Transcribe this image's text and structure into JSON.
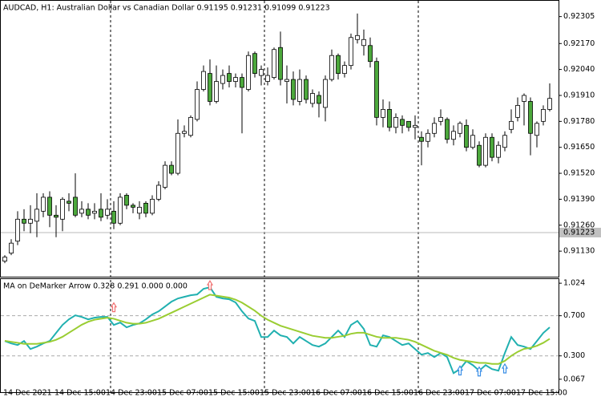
{
  "chart_data": [
    {
      "type": "candlestick",
      "title": "AUDCAD, H1:  Australian Dollar vs Canadian Dollar  0.91195 0.91231 0.91099 0.91223",
      "categories": [
        "14 Dec 2021",
        null,
        null,
        null,
        null,
        null,
        null,
        null,
        "14 Dec 15:00",
        null,
        null,
        null,
        null,
        null,
        null,
        null,
        "14 Dec 23:00",
        null,
        null,
        null,
        null,
        null,
        null,
        null,
        "15 Dec 07:00",
        null,
        null,
        null,
        null,
        null,
        null,
        null,
        "15 Dec 15:00",
        null,
        null,
        null,
        null,
        null,
        null,
        null,
        "15 Dec 23:00",
        null,
        null,
        null,
        null,
        null,
        null,
        null,
        "16 Dec 07:00",
        null,
        null,
        null,
        null,
        null,
        null,
        null,
        "16 Dec 15:00",
        null,
        null,
        null,
        null,
        null,
        null,
        null,
        "16 Dec 23:00",
        null,
        null,
        null,
        null,
        null,
        null,
        null,
        "17 Dec 07:00",
        null,
        null,
        null,
        null,
        null,
        null,
        null,
        "17 Dec 15:00",
        null,
        null,
        null,
        null,
        null
      ],
      "open": [
        0.9108,
        0.9112,
        0.9118,
        0.9129,
        0.9127,
        0.9128,
        0.9133,
        0.914,
        0.9131,
        0.9129,
        0.9138,
        0.914,
        0.9132,
        0.9134,
        0.9132,
        0.9134,
        0.9131,
        0.9133,
        0.9127,
        0.9141,
        0.9136,
        0.9132,
        0.9137,
        0.9132,
        0.9139,
        0.9145,
        0.9156,
        0.9152,
        0.9172,
        0.9171,
        0.9179,
        0.9194,
        0.9202,
        0.9188,
        0.9197,
        0.9202,
        0.9198,
        0.92,
        0.9194,
        0.9212,
        0.9201,
        0.9198,
        0.92,
        0.9215,
        0.9198,
        0.9199,
        0.9188,
        0.9199,
        0.9187,
        0.9191,
        0.9185,
        0.9199,
        0.9211,
        0.9202,
        0.9206,
        0.9219,
        0.9216,
        0.9216,
        0.9208,
        0.918,
        0.9184,
        0.9175,
        0.9179,
        0.9178,
        0.9175,
        0.917,
        0.9168,
        0.9172,
        0.9178,
        0.9179,
        0.9169,
        0.9172,
        0.9176,
        0.9165,
        0.9166,
        0.9156,
        0.917,
        0.916,
        0.9165,
        0.9174,
        0.918,
        0.9188,
        0.9188,
        0.9171,
        0.9178,
        0.9184
      ],
      "high": [
        0.9111,
        0.9119,
        0.9133,
        0.9134,
        0.9136,
        0.9142,
        0.9142,
        0.9143,
        0.9136,
        0.914,
        0.9142,
        0.9152,
        0.9138,
        0.9137,
        0.9137,
        0.9142,
        0.9139,
        0.9138,
        0.9142,
        0.9142,
        0.9137,
        0.9138,
        0.9138,
        0.9141,
        0.9148,
        0.9158,
        0.9158,
        0.9179,
        0.9176,
        0.9181,
        0.9198,
        0.9206,
        0.9209,
        0.9206,
        0.9204,
        0.9206,
        0.9202,
        0.9202,
        0.9213,
        0.9213,
        0.9206,
        0.9205,
        0.9215,
        0.9223,
        0.9206,
        0.9203,
        0.9204,
        0.9201,
        0.9194,
        0.9193,
        0.9201,
        0.9214,
        0.9212,
        0.9208,
        0.9222,
        0.9232,
        0.9224,
        0.922,
        0.921,
        0.9189,
        0.9188,
        0.9182,
        0.9181,
        0.9178,
        0.9181,
        0.9173,
        0.9174,
        0.918,
        0.9184,
        0.918,
        0.9176,
        0.9178,
        0.9179,
        0.9174,
        0.9168,
        0.9172,
        0.9172,
        0.9168,
        0.9173,
        0.9184,
        0.919,
        0.9192,
        0.919,
        0.9178,
        0.9186,
        0.9197
      ],
      "low": [
        0.9107,
        0.9111,
        0.9116,
        0.9123,
        0.9122,
        0.912,
        0.913,
        0.9125,
        0.912,
        0.9123,
        0.9133,
        0.913,
        0.913,
        0.9129,
        0.9129,
        0.9128,
        0.9129,
        0.9124,
        0.9126,
        0.9134,
        0.9132,
        0.9129,
        0.913,
        0.9131,
        0.9138,
        0.9144,
        0.9151,
        0.9151,
        0.917,
        0.917,
        0.9178,
        0.9193,
        0.9186,
        0.9187,
        0.9194,
        0.9195,
        0.9195,
        0.9172,
        0.9193,
        0.92,
        0.9196,
        0.9196,
        0.9199,
        0.9196,
        0.9187,
        0.9186,
        0.9186,
        0.9187,
        0.9185,
        0.918,
        0.9178,
        0.9198,
        0.9199,
        0.92,
        0.9204,
        0.9217,
        0.9211,
        0.9205,
        0.9176,
        0.9175,
        0.9173,
        0.9172,
        0.9172,
        0.9173,
        0.9169,
        0.9156,
        0.9165,
        0.917,
        0.9176,
        0.9167,
        0.9166,
        0.917,
        0.9163,
        0.9164,
        0.9155,
        0.9155,
        0.9158,
        0.9157,
        0.9163,
        0.9172,
        0.9178,
        0.9176,
        0.9161,
        0.9165,
        0.9176,
        0.9183
      ],
      "close": [
        0.911,
        0.9117,
        0.9129,
        0.9127,
        0.9129,
        0.9134,
        0.914,
        0.9131,
        0.913,
        0.9139,
        0.9137,
        0.9131,
        0.9134,
        0.9131,
        0.9133,
        0.913,
        0.9134,
        0.9127,
        0.914,
        0.9136,
        0.9135,
        0.9135,
        0.9132,
        0.9139,
        0.9146,
        0.9156,
        0.9152,
        0.9172,
        0.9173,
        0.918,
        0.9194,
        0.9203,
        0.9188,
        0.9198,
        0.9201,
        0.9198,
        0.92,
        0.9195,
        0.9211,
        0.9202,
        0.9204,
        0.9201,
        0.9214,
        0.9199,
        0.9199,
        0.9189,
        0.9199,
        0.9189,
        0.9192,
        0.9187,
        0.9199,
        0.9211,
        0.9202,
        0.9206,
        0.922,
        0.9221,
        0.9219,
        0.9208,
        0.918,
        0.9184,
        0.9175,
        0.918,
        0.9176,
        0.9175,
        0.9176,
        0.9168,
        0.9172,
        0.9177,
        0.918,
        0.9169,
        0.9173,
        0.9177,
        0.9165,
        0.9171,
        0.9156,
        0.917,
        0.916,
        0.9166,
        0.9171,
        0.9178,
        0.9186,
        0.9191,
        0.9172,
        0.9177,
        0.9184,
        0.91895
      ],
      "up_color": "#ffffff",
      "down_color": "#4ca83c",
      "price_line": 0.91223,
      "ylim": [
        0.90998,
        0.92388
      ],
      "yticks": [
        0.92305,
        {
          "value": 0.9217,
          "label": "0.92170"
        },
        {
          "value": 0.9204,
          "label": "0.92040"
        },
        {
          "value": 0.9191,
          "label": "0.91910"
        },
        {
          "value": 0.9178,
          "label": "0.91780"
        },
        {
          "value": 0.9165,
          "label": "0.91650"
        },
        {
          "value": 0.9152,
          "label": "0.91520"
        },
        {
          "value": 0.9139,
          "label": "0.91390"
        },
        {
          "value": 0.9126,
          "label": "0.91260"
        },
        {
          "value": 0.9113,
          "label": "0.91130"
        }
      ]
    },
    {
      "type": "line",
      "title": "MA on DeMarker Arrow 0.328 0.291 0.000 0.000",
      "series": [
        {
          "color": "#20b0b0",
          "values": [
            0.448,
            0.424,
            0.408,
            0.448,
            0.368,
            0.392,
            0.424,
            0.448,
            0.528,
            0.608,
            0.664,
            0.704,
            0.688,
            0.664,
            0.68,
            0.688,
            0.688,
            0.608,
            0.632,
            0.584,
            0.608,
            0.624,
            0.664,
            0.712,
            0.744,
            0.792,
            0.84,
            0.872,
            0.888,
            0.904,
            0.912,
            0.968,
            0.984,
            0.888,
            0.872,
            0.864,
            0.832,
            0.744,
            0.672,
            0.648,
            0.488,
            0.488,
            0.552,
            0.504,
            0.488,
            0.424,
            0.488,
            0.448,
            0.408,
            0.392,
            0.424,
            0.488,
            0.552,
            0.488,
            0.608,
            0.648,
            0.568,
            0.408,
            0.392,
            0.504,
            0.488,
            0.448,
            0.408,
            0.424,
            0.368,
            0.312,
            0.328,
            0.288,
            0.328,
            0.288,
            0.128,
            0.168,
            0.248,
            0.208,
            0.152,
            0.208,
            0.168,
            0.152,
            0.328,
            0.488,
            0.408,
            0.392,
            0.368,
            0.448,
            0.528,
            0.584
          ]
        },
        {
          "color": "#9acd32",
          "values": [
            0.45,
            0.44,
            0.43,
            0.42,
            0.42,
            0.42,
            0.43,
            0.44,
            0.46,
            0.49,
            0.53,
            0.57,
            0.61,
            0.64,
            0.66,
            0.67,
            0.68,
            0.67,
            0.65,
            0.63,
            0.62,
            0.62,
            0.63,
            0.65,
            0.67,
            0.7,
            0.73,
            0.76,
            0.79,
            0.82,
            0.85,
            0.88,
            0.91,
            0.9,
            0.89,
            0.88,
            0.86,
            0.83,
            0.79,
            0.75,
            0.7,
            0.66,
            0.63,
            0.6,
            0.58,
            0.56,
            0.54,
            0.52,
            0.5,
            0.49,
            0.48,
            0.48,
            0.49,
            0.5,
            0.52,
            0.53,
            0.53,
            0.51,
            0.49,
            0.48,
            0.48,
            0.48,
            0.47,
            0.46,
            0.44,
            0.41,
            0.38,
            0.35,
            0.33,
            0.31,
            0.28,
            0.26,
            0.25,
            0.24,
            0.23,
            0.23,
            0.22,
            0.22,
            0.25,
            0.3,
            0.34,
            0.37,
            0.38,
            0.4,
            0.43,
            0.47
          ]
        }
      ],
      "arrows": [
        {
          "color": "#f07070",
          "values": [
            null,
            null,
            null,
            null,
            null,
            null,
            null,
            null,
            null,
            null,
            null,
            null,
            null,
            null,
            null,
            null,
            null,
            0.78,
            null,
            null,
            null,
            null,
            null,
            null,
            null,
            null,
            null,
            null,
            null,
            null,
            null,
            null,
            1.0,
            null,
            null,
            null,
            null,
            null,
            null,
            null,
            null,
            null,
            null,
            null,
            null,
            null,
            null,
            null,
            null,
            null,
            null,
            null,
            null,
            null,
            null,
            null,
            null,
            null,
            null,
            null,
            null,
            null,
            null,
            null,
            null,
            null,
            null,
            null,
            null,
            null,
            null,
            null,
            null,
            null,
            null,
            null,
            null,
            null,
            null,
            null,
            null,
            null,
            null,
            null,
            null,
            null
          ]
        },
        {
          "color": "#3a8ee6",
          "values": [
            null,
            null,
            null,
            null,
            null,
            null,
            null,
            null,
            null,
            null,
            null,
            null,
            null,
            null,
            null,
            null,
            null,
            null,
            null,
            null,
            null,
            null,
            null,
            null,
            null,
            null,
            null,
            null,
            null,
            null,
            null,
            null,
            null,
            null,
            null,
            null,
            null,
            null,
            null,
            null,
            null,
            null,
            null,
            null,
            null,
            null,
            null,
            null,
            null,
            null,
            null,
            null,
            null,
            null,
            null,
            null,
            null,
            null,
            null,
            null,
            null,
            null,
            null,
            null,
            null,
            null,
            null,
            null,
            null,
            null,
            null,
            0.15,
            null,
            null,
            0.14,
            null,
            null,
            null,
            0.17,
            null,
            null,
            null,
            null,
            null,
            null,
            null
          ]
        }
      ],
      "levels": [
        0.7,
        0.3
      ],
      "ylim": [
        -0.07,
        1.065
      ],
      "yticks": [
        1.024,
        {
          "value": 0.7,
          "label": "0.700"
        },
        {
          "value": 0.3,
          "label": "0.300"
        },
        0.067
      ]
    }
  ]
}
